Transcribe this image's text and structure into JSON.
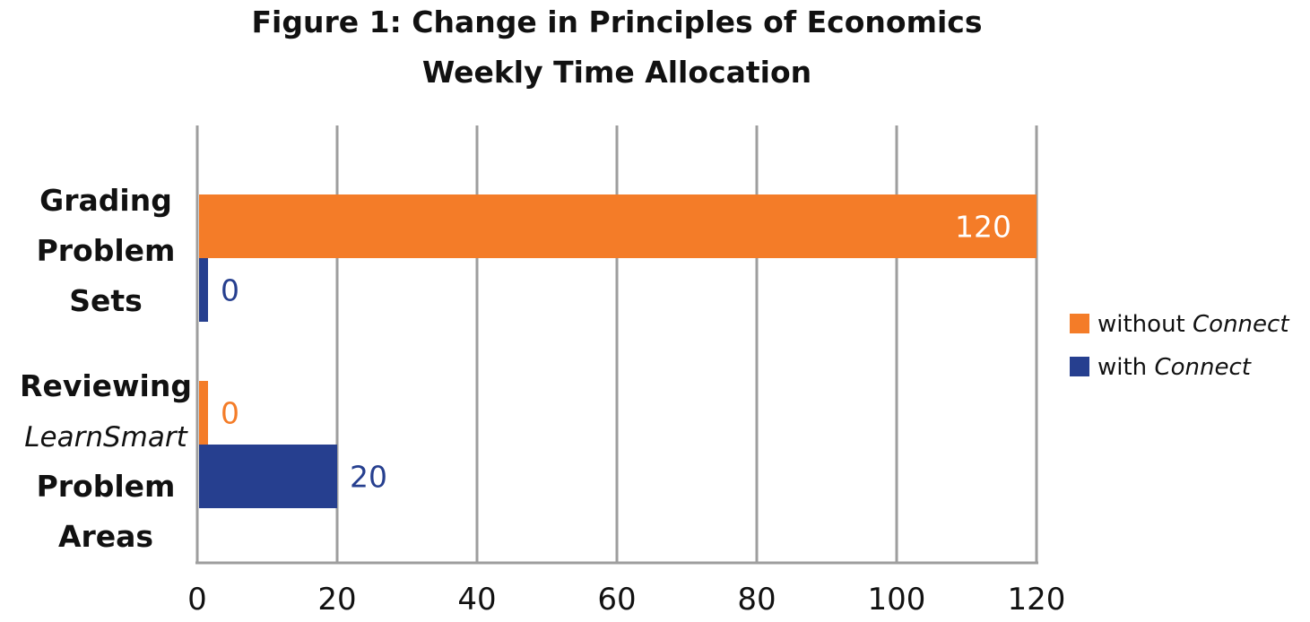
{
  "chart_data": {
    "type": "bar",
    "orientation": "horizontal",
    "title": "Figure 1: Change in Principles of Economics Weekly Time Allocation",
    "title_lines": [
      "Figure 1: Change in Principles of Economics",
      "Weekly Time Allocation"
    ],
    "categories": [
      {
        "lines": [
          {
            "text": "Grading",
            "style": "bold"
          },
          {
            "text": "Problem",
            "style": "bold"
          },
          {
            "text": "Sets",
            "style": "bold"
          }
        ]
      },
      {
        "lines": [
          {
            "text": "Reviewing",
            "style": "bold"
          },
          {
            "text": "LearnSmart",
            "style": "italic"
          },
          {
            "text": "Problem",
            "style": "bold"
          },
          {
            "text": "Areas",
            "style": "bold"
          }
        ]
      }
    ],
    "series": [
      {
        "name": "without Connect",
        "name_prefix": "without ",
        "name_italic": "Connect",
        "color": "#F47C28",
        "values": [
          120,
          0
        ],
        "value_labels": [
          "120",
          "0"
        ]
      },
      {
        "name": "with Connect",
        "name_prefix": "with ",
        "name_italic": "Connect",
        "color": "#263F8F",
        "values": [
          0,
          20
        ],
        "value_labels": [
          "0",
          "20"
        ]
      }
    ],
    "x_ticks": [
      "0",
      "20",
      "40",
      "60",
      "80",
      "100",
      "120"
    ],
    "xlim": [
      0,
      120
    ],
    "grid": "vertical",
    "grid_color": "#9e9e9e",
    "legend_position": "right"
  }
}
